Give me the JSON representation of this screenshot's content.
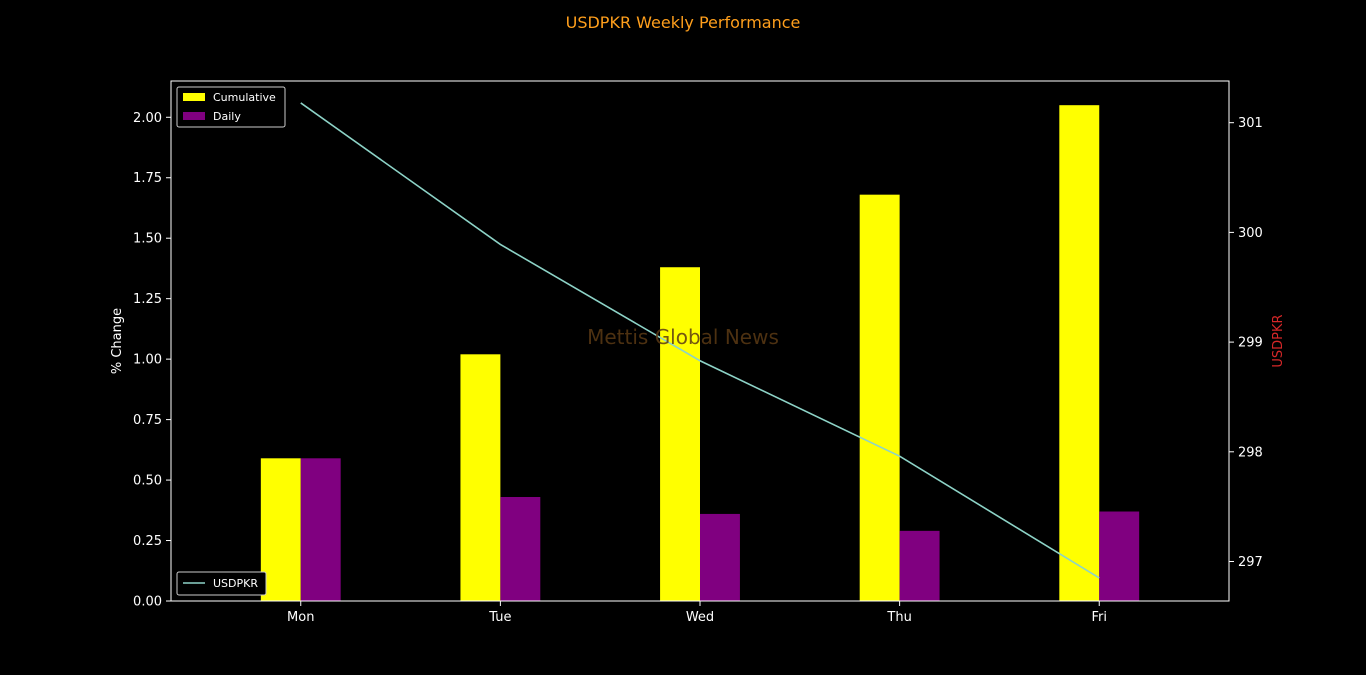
{
  "chart_data": {
    "type": "bar",
    "title": "USDPKR Weekly Performance",
    "watermark": "Mettis Global News",
    "categories": [
      "Mon",
      "Tue",
      "Wed",
      "Thu",
      "Fri"
    ],
    "ylabel": "% Change",
    "ylim": [
      0,
      2.15
    ],
    "yticks": [
      "0.00",
      "0.25",
      "0.50",
      "0.75",
      "1.00",
      "1.25",
      "1.50",
      "1.75",
      "2.00"
    ],
    "series": [
      {
        "name": "Cumulative",
        "color": "#ffff00",
        "values": [
          0.59,
          1.02,
          1.38,
          1.68,
          2.05
        ]
      },
      {
        "name": "Daily",
        "color": "#800080",
        "values": [
          0.59,
          0.43,
          0.36,
          0.29,
          0.37
        ]
      }
    ],
    "secondary_axis": {
      "ylabel": "USDPKR",
      "label_color": "#d62728",
      "ylim": [
        296.64,
        301.38
      ],
      "yticks": [
        "297",
        "298",
        "299",
        "300",
        "301"
      ],
      "series": [
        {
          "name": "USDPKR",
          "type": "line",
          "color": "#8dd3c7",
          "values": [
            301.18,
            299.89,
            298.83,
            297.96,
            296.85
          ]
        }
      ]
    },
    "legend_bars_position": "top-left",
    "legend_line_position": "bottom-left",
    "title_color": "#ff9f1c",
    "grid": false
  }
}
